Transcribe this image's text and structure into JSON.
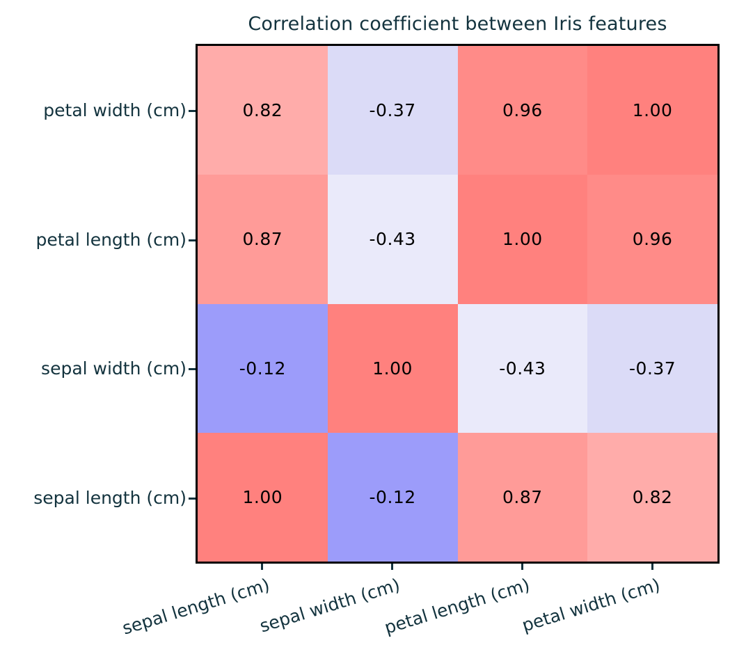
{
  "figure": {
    "background": "#FFFFFF",
    "frame_color": "#000000",
    "text_color": "#13333E",
    "cell_text_color": "#000000"
  },
  "chart_data": {
    "type": "heatmap",
    "title": "Correlation coefficient between Iris features",
    "row_labels": [
      "petal width (cm)",
      "petal length (cm)",
      "sepal width (cm)",
      "sepal length (cm)"
    ],
    "col_labels": [
      "sepal length (cm)",
      "sepal width (cm)",
      "petal length (cm)",
      "petal width (cm)"
    ],
    "matrix": [
      [
        0.82,
        -0.37,
        0.96,
        1.0
      ],
      [
        0.87,
        -0.43,
        1.0,
        0.96
      ],
      [
        -0.12,
        1.0,
        -0.43,
        -0.37
      ],
      [
        1.0,
        -0.12,
        0.87,
        0.82
      ]
    ],
    "cell_texts": [
      [
        "0.82",
        "-0.37",
        "0.96",
        "1.00"
      ],
      [
        "0.87",
        "-0.43",
        "1.00",
        "0.96"
      ],
      [
        "-0.12",
        "1.00",
        "-0.43",
        "-0.37"
      ],
      [
        "1.00",
        "-0.12",
        "0.87",
        "0.82"
      ]
    ],
    "cell_colors": [
      [
        "#FFACAA",
        "#DBDBF7",
        "#FF8B88",
        "#FF817E"
      ],
      [
        "#FF9B98",
        "#EAEAFA",
        "#FF817E",
        "#FF8B88"
      ],
      [
        "#9C9CFA",
        "#FF817E",
        "#EAEAFA",
        "#DBDBF7"
      ],
      [
        "#FF817E",
        "#9C9CFA",
        "#FF9B98",
        "#FFACAA"
      ]
    ],
    "value_range": [
      -1.0,
      1.0
    ],
    "grid": "off",
    "legend": "none"
  }
}
